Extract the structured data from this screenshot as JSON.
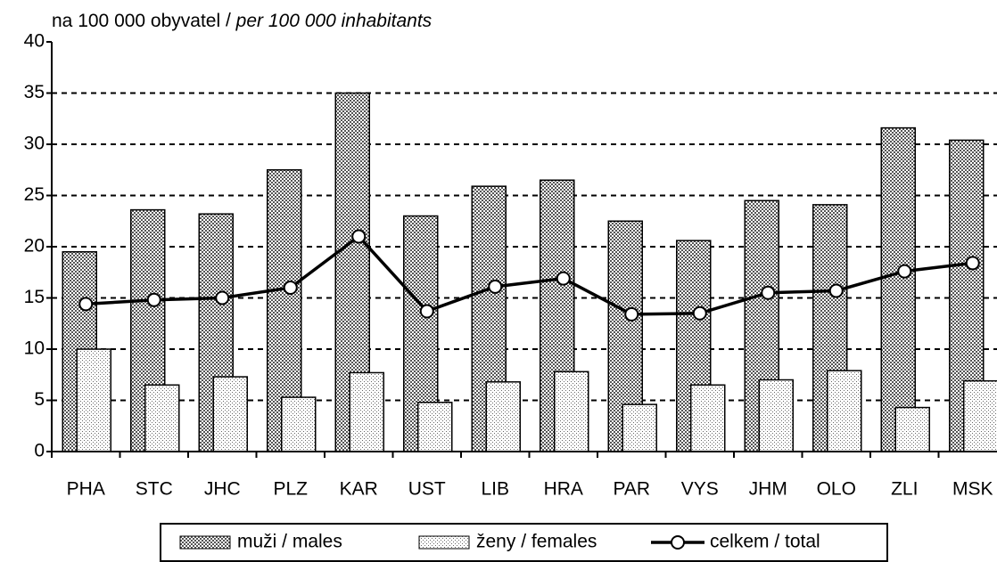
{
  "chart_data": {
    "type": "bar",
    "title": "na 100 000 obyvatel",
    "title_en": "per 100 000 inhabitants",
    "categories": [
      "PHA",
      "STC",
      "JHC",
      "PLZ",
      "KAR",
      "UST",
      "LIB",
      "HRA",
      "PAR",
      "VYS",
      "JHM",
      "OLO",
      "ZLI",
      "MSK"
    ],
    "series": [
      {
        "name": "muži / males",
        "color": "#888888",
        "values": [
          19.5,
          23.6,
          23.2,
          27.5,
          35,
          23,
          25.9,
          26.5,
          22.5,
          20.6,
          24.5,
          24.1,
          31.6,
          30.4
        ]
      },
      {
        "name": "ženy / females",
        "color": "#bbbbbb",
        "values": [
          10,
          6.5,
          7.3,
          5.3,
          7.7,
          4.8,
          6.8,
          7.8,
          4.6,
          6.5,
          7.0,
          7.9,
          4.3,
          6.9
        ]
      },
      {
        "name": "celkem / total",
        "type": "line",
        "color": "#000000",
        "values": [
          14.4,
          14.8,
          15.0,
          16.0,
          21.0,
          13.7,
          16.1,
          16.9,
          13.4,
          13.5,
          15.5,
          15.7,
          17.6,
          18.4
        ]
      }
    ],
    "ylim": [
      0,
      40
    ],
    "yticks": [
      0,
      5,
      10,
      15,
      20,
      25,
      30,
      35,
      40
    ],
    "grid": true,
    "legend": "bottom"
  }
}
